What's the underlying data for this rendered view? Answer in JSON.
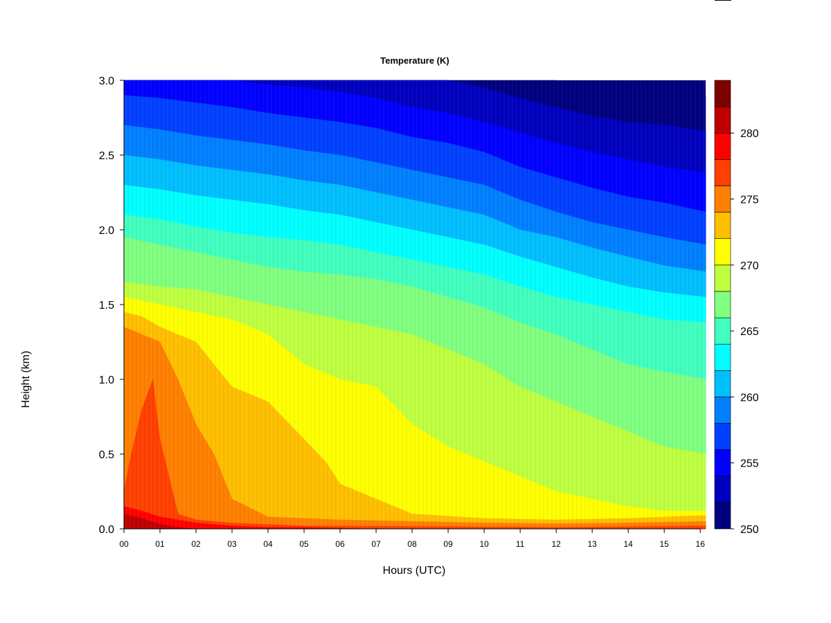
{
  "chart_data": {
    "type": "heatmap",
    "title": "Temperature (K)",
    "xlabel": "Hours (UTC)",
    "ylabel": "Height (km)",
    "x_ticks": [
      "00",
      "01",
      "02",
      "03",
      "04",
      "05",
      "06",
      "07",
      "08",
      "09",
      "10",
      "11",
      "12",
      "13",
      "14",
      "15",
      "16"
    ],
    "y_ticks": [
      "0.0",
      "0.5",
      "1.0",
      "1.5",
      "2.0",
      "2.5",
      "3.0"
    ],
    "xlim": [
      0,
      16.15
    ],
    "ylim": [
      0,
      3.0
    ],
    "colorbar": {
      "levels": [
        250,
        252,
        254,
        256,
        258,
        260,
        262,
        264,
        266,
        268,
        270,
        272,
        274,
        276,
        278,
        280,
        282,
        284
      ],
      "colors": [
        "#00007f",
        "#0000bf",
        "#0000ff",
        "#0040ff",
        "#0080ff",
        "#00bfff",
        "#00ffff",
        "#40ffbf",
        "#80ff80",
        "#bfff40",
        "#ffff00",
        "#ffbf00",
        "#ff8000",
        "#ff4000",
        "#ff0000",
        "#bf0000",
        "#7f0000"
      ],
      "tick_values": [
        "250",
        "255",
        "260",
        "265",
        "270",
        "275",
        "280"
      ]
    },
    "isotherms": [
      {
        "level": 282,
        "points": [
          [
            0,
            0.1
          ],
          [
            0.5,
            0.07
          ],
          [
            1,
            0.03
          ],
          [
            1.5,
            0.01
          ],
          [
            2,
            0
          ]
        ]
      },
      {
        "level": 280,
        "points": [
          [
            0,
            0.15
          ],
          [
            0.5,
            0.12
          ],
          [
            1,
            0.08
          ],
          [
            2,
            0.04
          ],
          [
            3,
            0.02
          ],
          [
            4,
            0.01
          ],
          [
            5,
            0.01
          ],
          [
            7,
            0
          ],
          [
            16.15,
            0
          ]
        ]
      },
      {
        "level": 278,
        "points": [
          [
            0,
            0.25
          ],
          [
            0.2,
            0.5
          ],
          [
            0.5,
            0.8
          ],
          [
            0.8,
            1.0
          ],
          [
            1.0,
            0.6
          ],
          [
            1.5,
            0.1
          ],
          [
            2,
            0.06
          ],
          [
            3,
            0.04
          ],
          [
            5,
            0.02
          ],
          [
            9,
            0.015
          ],
          [
            12,
            0.01
          ],
          [
            16.15,
            0.02
          ]
        ]
      },
      {
        "level": 276,
        "points": [
          [
            0,
            1.35
          ],
          [
            0.5,
            1.3
          ],
          [
            1,
            1.25
          ],
          [
            1.5,
            1.0
          ],
          [
            2,
            0.7
          ],
          [
            2.5,
            0.5
          ],
          [
            3,
            0.2
          ],
          [
            4,
            0.08
          ],
          [
            6,
            0.06
          ],
          [
            8,
            0.05
          ],
          [
            10,
            0.04
          ],
          [
            12,
            0.035
          ],
          [
            14,
            0.04
          ],
          [
            16.15,
            0.05
          ]
        ]
      },
      {
        "level": 274,
        "points": [
          [
            0,
            1.45
          ],
          [
            0.5,
            1.42
          ],
          [
            1,
            1.35
          ],
          [
            2,
            1.25
          ],
          [
            3,
            0.95
          ],
          [
            4,
            0.85
          ],
          [
            5,
            0.6
          ],
          [
            5.6,
            0.45
          ],
          [
            6,
            0.3
          ],
          [
            8,
            0.1
          ],
          [
            10,
            0.07
          ],
          [
            12,
            0.06
          ],
          [
            14,
            0.07
          ],
          [
            16.15,
            0.09
          ]
        ]
      },
      {
        "level": 272,
        "points": [
          [
            0,
            1.55
          ],
          [
            1,
            1.5
          ],
          [
            2,
            1.45
          ],
          [
            3,
            1.4
          ],
          [
            4,
            1.3
          ],
          [
            5,
            1.1
          ],
          [
            6,
            1.0
          ],
          [
            7,
            0.95
          ],
          [
            8,
            0.7
          ],
          [
            9,
            0.55
          ],
          [
            10,
            0.45
          ],
          [
            11,
            0.35
          ],
          [
            12,
            0.25
          ],
          [
            13,
            0.2
          ],
          [
            14,
            0.15
          ],
          [
            15,
            0.12
          ],
          [
            16.15,
            0.12
          ]
        ]
      },
      {
        "level": 270,
        "points": [
          [
            0,
            1.65
          ],
          [
            1,
            1.62
          ],
          [
            2,
            1.6
          ],
          [
            3,
            1.55
          ],
          [
            4,
            1.5
          ],
          [
            5,
            1.45
          ],
          [
            6,
            1.4
          ],
          [
            7,
            1.35
          ],
          [
            8,
            1.3
          ],
          [
            9,
            1.2
          ],
          [
            10,
            1.1
          ],
          [
            11,
            0.95
          ],
          [
            12,
            0.85
          ],
          [
            13,
            0.75
          ],
          [
            14,
            0.65
          ],
          [
            15,
            0.55
          ],
          [
            16.15,
            0.5
          ]
        ]
      },
      {
        "level": 268,
        "points": [
          [
            0,
            1.95
          ],
          [
            1,
            1.9
          ],
          [
            2,
            1.85
          ],
          [
            3,
            1.8
          ],
          [
            4,
            1.75
          ],
          [
            5,
            1.72
          ],
          [
            6,
            1.7
          ],
          [
            7,
            1.67
          ],
          [
            8,
            1.62
          ],
          [
            9,
            1.55
          ],
          [
            10,
            1.48
          ],
          [
            11,
            1.38
          ],
          [
            12,
            1.3
          ],
          [
            13,
            1.2
          ],
          [
            14,
            1.1
          ],
          [
            15,
            1.05
          ],
          [
            16.15,
            1.0
          ]
        ]
      },
      {
        "level": 266,
        "points": [
          [
            0,
            2.1
          ],
          [
            1,
            2.07
          ],
          [
            2,
            2.02
          ],
          [
            3,
            1.98
          ],
          [
            4,
            1.95
          ],
          [
            5,
            1.93
          ],
          [
            6,
            1.9
          ],
          [
            7,
            1.85
          ],
          [
            8,
            1.8
          ],
          [
            9,
            1.75
          ],
          [
            10,
            1.7
          ],
          [
            11,
            1.62
          ],
          [
            12,
            1.55
          ],
          [
            13,
            1.5
          ],
          [
            14,
            1.45
          ],
          [
            15,
            1.4
          ],
          [
            16.15,
            1.38
          ]
        ]
      },
      {
        "level": 264,
        "points": [
          [
            0,
            2.3
          ],
          [
            1,
            2.27
          ],
          [
            2,
            2.23
          ],
          [
            3,
            2.2
          ],
          [
            4,
            2.17
          ],
          [
            5,
            2.13
          ],
          [
            6,
            2.1
          ],
          [
            7,
            2.05
          ],
          [
            8,
            2.0
          ],
          [
            9,
            1.95
          ],
          [
            10,
            1.9
          ],
          [
            11,
            1.82
          ],
          [
            12,
            1.75
          ],
          [
            13,
            1.68
          ],
          [
            14,
            1.62
          ],
          [
            15,
            1.58
          ],
          [
            16.15,
            1.55
          ]
        ]
      },
      {
        "level": 262,
        "points": [
          [
            0,
            2.5
          ],
          [
            1,
            2.47
          ],
          [
            2,
            2.43
          ],
          [
            3,
            2.4
          ],
          [
            4,
            2.37
          ],
          [
            5,
            2.33
          ],
          [
            6,
            2.3
          ],
          [
            7,
            2.25
          ],
          [
            8,
            2.2
          ],
          [
            9,
            2.15
          ],
          [
            10,
            2.1
          ],
          [
            11,
            2.0
          ],
          [
            12,
            1.95
          ],
          [
            13,
            1.88
          ],
          [
            14,
            1.82
          ],
          [
            15,
            1.76
          ],
          [
            16.15,
            1.72
          ]
        ]
      },
      {
        "level": 260,
        "points": [
          [
            0,
            2.7
          ],
          [
            1,
            2.67
          ],
          [
            2,
            2.63
          ],
          [
            3,
            2.6
          ],
          [
            4,
            2.57
          ],
          [
            5,
            2.53
          ],
          [
            6,
            2.5
          ],
          [
            7,
            2.45
          ],
          [
            8,
            2.4
          ],
          [
            9,
            2.35
          ],
          [
            10,
            2.3
          ],
          [
            11,
            2.2
          ],
          [
            12,
            2.12
          ],
          [
            13,
            2.05
          ],
          [
            14,
            2.0
          ],
          [
            15,
            1.95
          ],
          [
            16.15,
            1.9
          ]
        ]
      },
      {
        "level": 258,
        "points": [
          [
            0,
            2.9
          ],
          [
            1,
            2.88
          ],
          [
            2,
            2.85
          ],
          [
            3,
            2.82
          ],
          [
            4,
            2.78
          ],
          [
            5,
            2.75
          ],
          [
            6,
            2.72
          ],
          [
            7,
            2.68
          ],
          [
            8,
            2.62
          ],
          [
            9,
            2.58
          ],
          [
            10,
            2.52
          ],
          [
            11,
            2.42
          ],
          [
            12,
            2.35
          ],
          [
            13,
            2.28
          ],
          [
            14,
            2.22
          ],
          [
            15,
            2.18
          ],
          [
            16.15,
            2.12
          ]
        ]
      },
      {
        "level": 256,
        "points": [
          [
            0,
            3.0
          ],
          [
            3,
            3.0
          ],
          [
            4,
            2.97
          ],
          [
            5,
            2.95
          ],
          [
            6,
            2.92
          ],
          [
            7,
            2.88
          ],
          [
            8,
            2.82
          ],
          [
            9,
            2.78
          ],
          [
            10,
            2.72
          ],
          [
            11,
            2.65
          ],
          [
            12,
            2.58
          ],
          [
            13,
            2.52
          ],
          [
            14,
            2.47
          ],
          [
            15,
            2.42
          ],
          [
            16.15,
            2.38
          ]
        ]
      },
      {
        "level": 254,
        "points": [
          [
            0,
            3.0
          ],
          [
            9,
            3.0
          ],
          [
            10,
            2.95
          ],
          [
            11,
            2.88
          ],
          [
            12,
            2.82
          ],
          [
            13,
            2.76
          ],
          [
            14,
            2.72
          ],
          [
            15,
            2.7
          ],
          [
            16.15,
            2.66
          ]
        ]
      },
      {
        "level": 252,
        "points": [
          [
            0,
            3.0
          ],
          [
            12,
            3.0
          ],
          [
            13,
            2.97
          ],
          [
            14,
            2.94
          ],
          [
            15,
            2.92
          ],
          [
            16.15,
            2.9
          ]
        ]
      }
    ]
  }
}
